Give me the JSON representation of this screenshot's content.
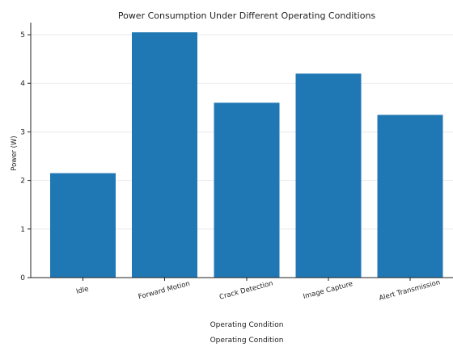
{
  "chart_data": {
    "type": "bar",
    "title": "Power Consumption Under Different Operating Conditions",
    "xlabel": "Operating Condition",
    "xlabel_repeat": "Operating Condition",
    "ylabel": "Power (W)",
    "categories": [
      "Idle",
      "Forward Motion",
      "Crack Detection",
      "Image Capture",
      "Alert Transmission"
    ],
    "values": [
      2.15,
      5.05,
      3.6,
      4.2,
      3.35
    ],
    "ylim": [
      0,
      5.25
    ],
    "yticks": [
      0,
      1,
      2,
      3,
      4,
      5
    ],
    "grid": "horizontal",
    "bar_color": "#1f77b4",
    "legend": "none"
  }
}
